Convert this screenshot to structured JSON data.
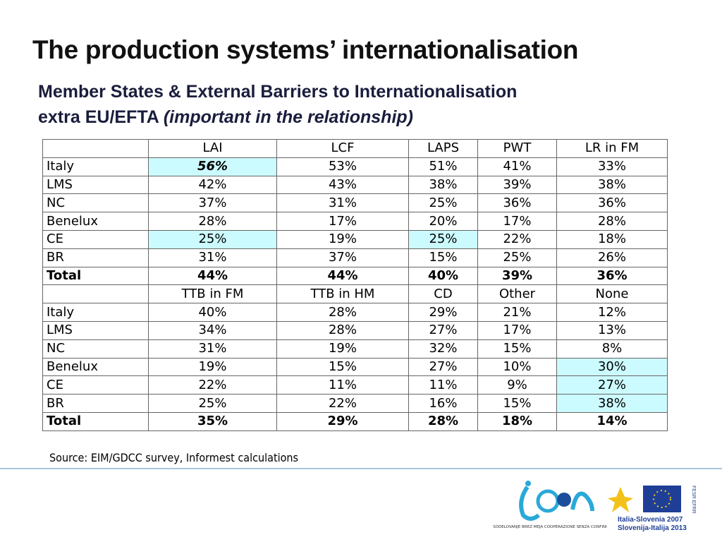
{
  "title": "The production systems’ internationalisation",
  "subtitle": {
    "line1": "Member States & External Barriers to Internationalisation",
    "line2": "extra EU/EFTA",
    "line2_italic": "(important in the relationship)"
  },
  "table": {
    "sections": [
      {
        "columns": [
          "LAI",
          "LCF",
          "LAPS",
          "PWT",
          "LR in FM"
        ],
        "rows": [
          [
            "Italy",
            "56%",
            "53%",
            "51%",
            "41%",
            "33%"
          ],
          [
            "LMS",
            "42%",
            "43%",
            "38%",
            "39%",
            "38%"
          ],
          [
            "NC",
            "37%",
            "31%",
            "25%",
            "36%",
            "36%"
          ],
          [
            "Benelux",
            "28%",
            "17%",
            "20%",
            "17%",
            "28%"
          ],
          [
            "CE",
            "25%",
            "19%",
            "25%",
            "22%",
            "18%"
          ],
          [
            "BR",
            "31%",
            "37%",
            "15%",
            "25%",
            "26%"
          ],
          [
            "Total",
            "44%",
            "44%",
            "40%",
            "39%",
            "36%"
          ]
        ]
      },
      {
        "columns": [
          "TTB in FM",
          "TTB in HM",
          "CD",
          "Other",
          "None"
        ],
        "rows": [
          [
            "Italy",
            "40%",
            "28%",
            "29%",
            "21%",
            "12%"
          ],
          [
            "LMS",
            "34%",
            "28%",
            "27%",
            "17%",
            "13%"
          ],
          [
            "NC",
            "31%",
            "19%",
            "32%",
            "15%",
            "8%"
          ],
          [
            "Benelux",
            "19%",
            "15%",
            "27%",
            "10%",
            "30%"
          ],
          [
            "CE",
            "22%",
            "11%",
            "11%",
            "9%",
            "27%"
          ],
          [
            "BR",
            "25%",
            "22%",
            "16%",
            "15%",
            "38%"
          ],
          [
            "Total",
            "35%",
            "29%",
            "28%",
            "18%",
            "14%"
          ]
        ]
      }
    ]
  },
  "source": "Source: EIM/GDCC survey, Informest calculations",
  "logos": {
    "icon_caption": "SODELOVANJE BREZ MEJA  COOPERAZIONE SENZA CONFINI",
    "program_line1": "Italia-Slovenia 2007",
    "program_line2": "Slovenija-Italija 2013",
    "fund": "FESR EFRR"
  }
}
